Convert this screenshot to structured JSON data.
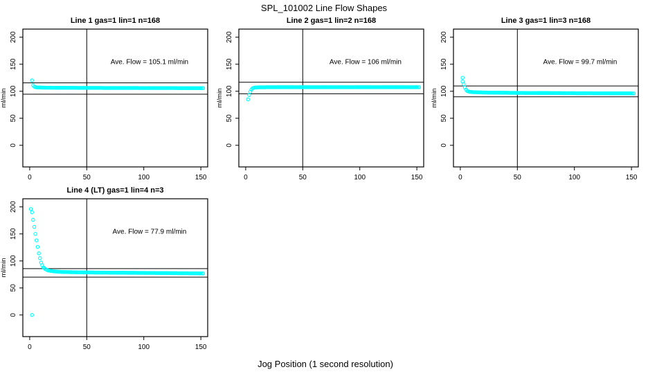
{
  "title": "SPL_101002  Line Flow Shapes",
  "xlabel": "Jog Position (1 second resolution)",
  "colors": {
    "marker": "#00FFFF",
    "axis": "#000000",
    "background": "#FFFFFF"
  },
  "chart_data": [
    {
      "type": "scatter",
      "title": "Line 1 gas=1 lin=1 n=168",
      "annotation": "Ave. Flow =  105.1  ml/min",
      "ave_flow": 105.1,
      "ylabel": "ml/min",
      "xlim": [
        -6,
        156
      ],
      "ylim": [
        -40,
        215
      ],
      "xticks": [
        0,
        50,
        100,
        150
      ],
      "yticks": [
        0,
        50,
        100,
        150,
        200
      ],
      "vline_x": 50,
      "hlines": [
        115.6,
        94.6
      ],
      "outliers": [
        [
          2,
          120
        ]
      ],
      "profile": [
        [
          3,
          111
        ],
        [
          4,
          108.5
        ],
        [
          5,
          107.5
        ],
        [
          7,
          107
        ],
        [
          10,
          106.8
        ],
        [
          15,
          106.6
        ],
        [
          25,
          106.4
        ],
        [
          50,
          106.2
        ],
        [
          75,
          106.1
        ],
        [
          100,
          106
        ],
        [
          125,
          105.9
        ],
        [
          152,
          105.8
        ]
      ]
    },
    {
      "type": "scatter",
      "title": "Line 2 gas=1 lin=2 n=168",
      "annotation": "Ave. Flow =  106  ml/min",
      "ave_flow": 106,
      "ylabel": "ml/min",
      "xlim": [
        -6,
        156
      ],
      "ylim": [
        -40,
        215
      ],
      "xticks": [
        0,
        50,
        100,
        150
      ],
      "yticks": [
        0,
        50,
        100,
        150,
        200
      ],
      "vline_x": 50,
      "hlines": [
        116.6,
        95.4
      ],
      "outliers": [
        [
          2,
          85
        ]
      ],
      "profile": [
        [
          3,
          93
        ],
        [
          4,
          99
        ],
        [
          5,
          103
        ],
        [
          6,
          105.5
        ],
        [
          8,
          106.8
        ],
        [
          12,
          107.3
        ],
        [
          20,
          107.5
        ],
        [
          50,
          107.5
        ],
        [
          100,
          107.5
        ],
        [
          152,
          107.5
        ]
      ]
    },
    {
      "type": "scatter",
      "title": "Line 3 gas=1 lin=3 n=168",
      "annotation": "Ave. Flow =  99.7  ml/min",
      "ave_flow": 99.7,
      "ylabel": "ml/min",
      "xlim": [
        -6,
        156
      ],
      "ylim": [
        -40,
        215
      ],
      "xticks": [
        0,
        50,
        100,
        150
      ],
      "yticks": [
        0,
        50,
        100,
        150,
        200
      ],
      "vline_x": 50,
      "hlines": [
        109.7,
        89.7
      ],
      "outliers": [
        [
          2,
          125
        ],
        [
          2,
          118
        ]
      ],
      "profile": [
        [
          3,
          113
        ],
        [
          4,
          107
        ],
        [
          5,
          103
        ],
        [
          6,
          100.5
        ],
        [
          8,
          99
        ],
        [
          10,
          98.5
        ],
        [
          15,
          98
        ],
        [
          25,
          97.5
        ],
        [
          50,
          97
        ],
        [
          75,
          96.7
        ],
        [
          100,
          96.4
        ],
        [
          125,
          96.2
        ],
        [
          152,
          96
        ]
      ]
    },
    {
      "type": "scatter",
      "title": "Line 4 (LT) gas=1 lin=4 n=3",
      "annotation": "Ave. Flow =  77.9  ml/min",
      "ave_flow": 77.9,
      "ylabel": "ml/min",
      "xlim": [
        -6,
        156
      ],
      "ylim": [
        -40,
        215
      ],
      "xticks": [
        0,
        50,
        100,
        150
      ],
      "yticks": [
        0,
        50,
        100,
        150,
        200
      ],
      "vline_x": 50,
      "hlines": [
        85.7,
        70.1
      ],
      "outliers": [
        [
          2,
          0
        ]
      ],
      "profile": [
        [
          1,
          196
        ],
        [
          2,
          190
        ],
        [
          3,
          176
        ],
        [
          4,
          163
        ],
        [
          5,
          150
        ],
        [
          6,
          138
        ],
        [
          7,
          126
        ],
        [
          8,
          114
        ],
        [
          9,
          105
        ],
        [
          10,
          97
        ],
        [
          11,
          92
        ],
        [
          12,
          88
        ],
        [
          14,
          84.5
        ],
        [
          16,
          82.5
        ],
        [
          20,
          81
        ],
        [
          25,
          80
        ],
        [
          30,
          79.5
        ],
        [
          40,
          79
        ],
        [
          50,
          78.7
        ],
        [
          70,
          78.3
        ],
        [
          90,
          78
        ],
        [
          110,
          77.7
        ],
        [
          130,
          77.3
        ],
        [
          152,
          77
        ]
      ]
    }
  ]
}
